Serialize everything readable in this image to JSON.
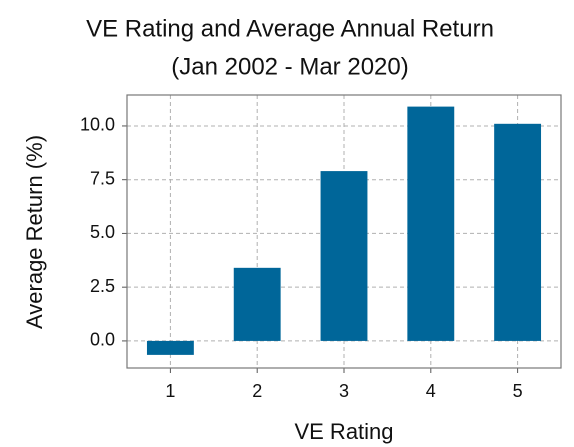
{
  "chart_data": {
    "type": "bar",
    "title": "VE Rating and Average Annual Return",
    "subtitle": "(Jan 2002 - Mar 2020)",
    "x_label": "VE Rating",
    "y_label": "Average Return (%)",
    "categories": [
      "1",
      "2",
      "3",
      "4",
      "5"
    ],
    "values": [
      -0.65,
      3.4,
      7.9,
      10.9,
      10.1
    ],
    "color": "#006699",
    "ylim": [
      -1.26,
      11.44
    ],
    "yticks": [
      {
        "value": 0,
        "label": "0.0"
      },
      2.5,
      {
        "value": 5,
        "label": "5.0"
      },
      7.5,
      {
        "value": 10,
        "label": "10.0"
      }
    ],
    "grid": true
  }
}
